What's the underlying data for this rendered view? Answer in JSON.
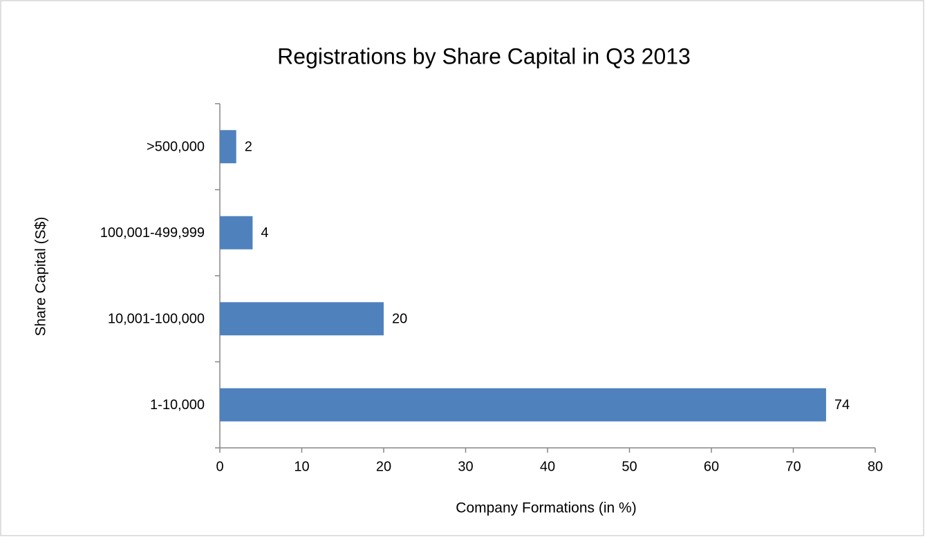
{
  "chart_data": {
    "type": "hbar",
    "title": "Registrations by Share Capital in Q3 2013",
    "x_label": "Company Formations (in %)",
    "y_label": "Share Capital (S$)",
    "categories": [
      "1-10,000",
      "10,001-100,000",
      "100,001-499,999",
      ">500,000"
    ],
    "values": [
      74,
      20,
      4,
      2
    ],
    "color": "#4f81bd",
    "xlim": [
      0,
      80
    ],
    "xticks": [
      0,
      10,
      20,
      30,
      40,
      50,
      60,
      70,
      80
    ],
    "grid": false
  }
}
